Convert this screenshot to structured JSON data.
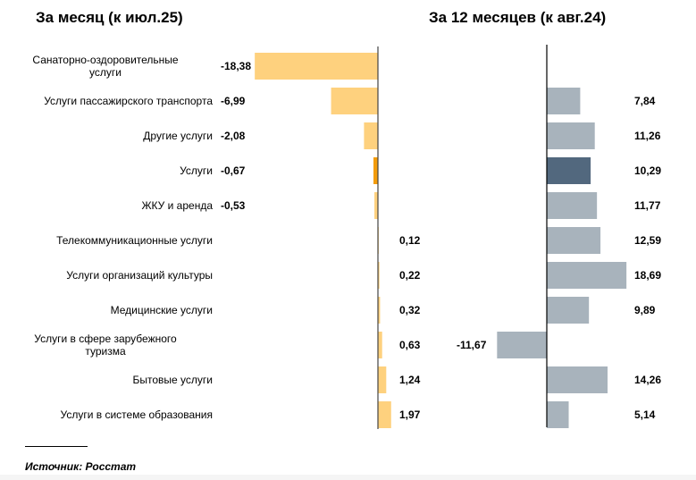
{
  "chart_data": [
    {
      "type": "bar",
      "orientation": "horizontal",
      "title": "За месяц (к июл.25)",
      "categories": [
        "Санаторно-оздоровительные услуги",
        "Услуги пассажирского транспорта",
        "Другие услуги",
        "Услуги",
        "ЖКУ и аренда",
        "Телекоммуникационные услуги",
        "Услуги организаций культуры",
        "Медицинские услуги",
        "Услуги в сфере зарубежного туризма",
        "Бытовые услуги",
        "Услуги в системе образования"
      ],
      "category_lines": [
        [
          "Санаторно-оздоровительные",
          "услуги"
        ],
        [
          "Услуги пассажирского транспорта"
        ],
        [
          "Другие услуги"
        ],
        [
          "Услуги"
        ],
        [
          "ЖКУ и аренда"
        ],
        [
          "Телекоммуникационные услуги"
        ],
        [
          "Услуги организаций культуры"
        ],
        [
          "Медицинские услуги"
        ],
        [
          "Услуги в сфере зарубежного",
          "туризма"
        ],
        [
          "Бытовые услуги"
        ],
        [
          "Услуги в системе образования"
        ]
      ],
      "values": [
        -18.38,
        -6.99,
        -2.08,
        -0.67,
        -0.53,
        0.12,
        0.22,
        0.32,
        0.63,
        1.24,
        1.97
      ],
      "labels": [
        "-18,38",
        "-6,99",
        "-2,08",
        "-0,67",
        "-0,53",
        "0,12",
        "0,22",
        "0,32",
        "0,63",
        "1,24",
        "1,97"
      ],
      "highlight_index": 3,
      "colors": {
        "bar": "#fed17e",
        "highlight": "#f39c0b",
        "axis": "#444444"
      }
    },
    {
      "type": "bar",
      "orientation": "horizontal",
      "title": "За 12 месяцев (к авг.24)",
      "values": [
        null,
        7.84,
        11.26,
        10.29,
        11.77,
        12.59,
        18.69,
        9.89,
        -11.67,
        14.26,
        5.14
      ],
      "labels": [
        "",
        "7,84",
        "11,26",
        "10,29",
        "11,77",
        "12,59",
        "18,69",
        "9,89",
        "-11,67",
        "14,26",
        "5,14"
      ],
      "highlight_index": 3,
      "colors": {
        "bar": "#a8b3bc",
        "highlight": "#52687e",
        "axis": "#000000"
      }
    }
  ],
  "footer": {
    "source": "Источник: Росстат"
  }
}
